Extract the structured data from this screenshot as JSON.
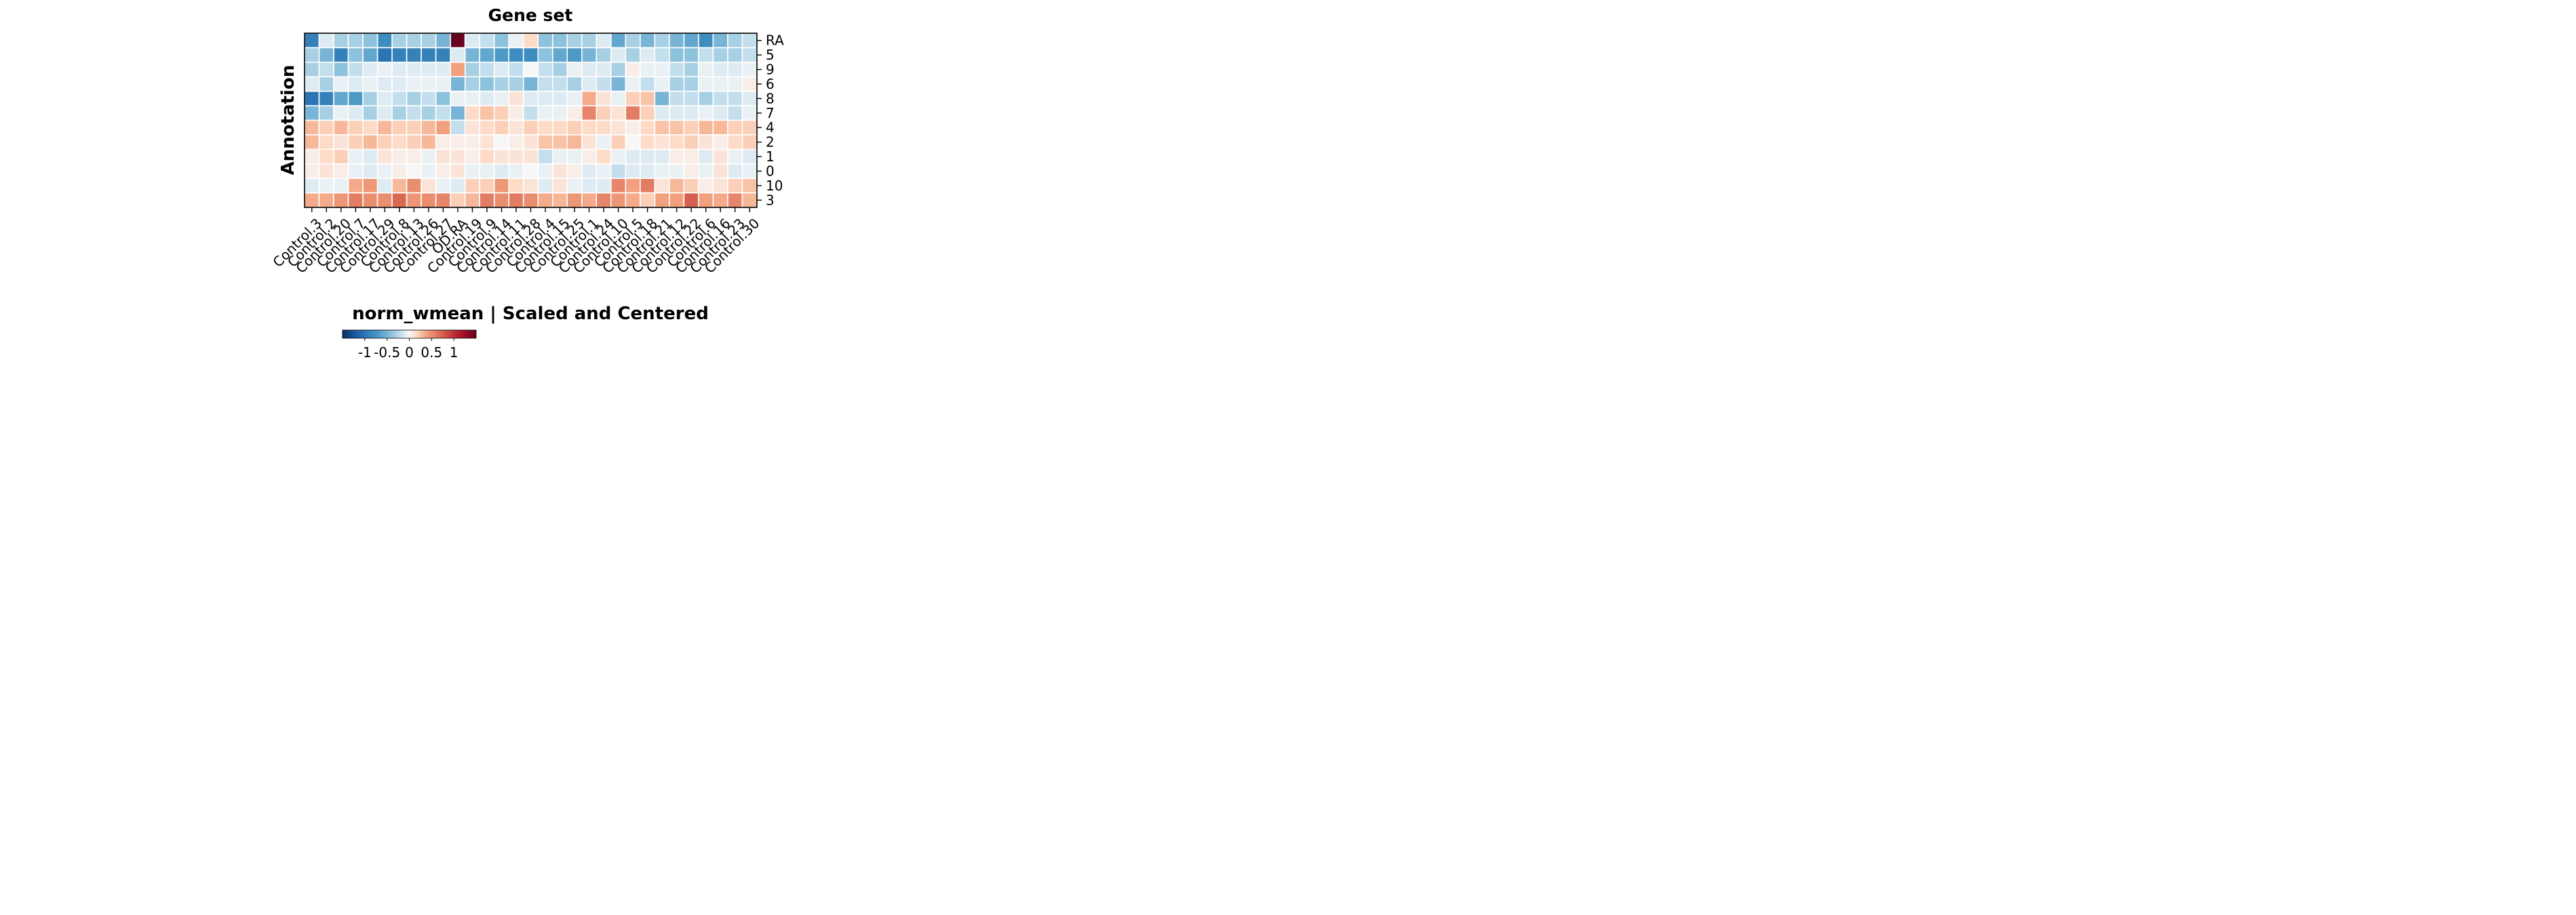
{
  "chart_data": {
    "type": "heatmap",
    "title": "Gene set",
    "xlabel": "",
    "ylabel": "Annotation",
    "colorbar": {
      "title": "norm_wmean | Scaled and Centered",
      "range": [
        -1.5,
        1.5
      ],
      "ticks": [
        -1,
        -0.5,
        0,
        0.5,
        1
      ],
      "tick_labels": [
        "-1",
        "-0.5",
        "0",
        "0.5",
        "1"
      ],
      "colormap": "RdBu_r"
    },
    "x_categories": [
      "Control.3",
      "Control.2",
      "Control.20",
      "Control.7",
      "Control.17",
      "Control.29",
      "Control.8",
      "Control.13",
      "Control.26",
      "Control.27",
      "OD.RA",
      "Control.19",
      "Control.9",
      "Control.14",
      "Control.11",
      "Control.28",
      "Control.4",
      "Control.15",
      "Control.25",
      "Control.1",
      "Control.24",
      "Control.10",
      "Control.5",
      "Control.18",
      "Control.21",
      "Control.12",
      "Control.22",
      "Control.6",
      "Control.16",
      "Control.23",
      "Control.30"
    ],
    "y_categories": [
      "RA",
      "5",
      "9",
      "6",
      "8",
      "7",
      "4",
      "2",
      "1",
      "0",
      "10",
      "3"
    ],
    "values": [
      [
        -0.9,
        -0.1,
        -0.3,
        -0.3,
        -0.4,
        -0.8,
        -0.3,
        -0.3,
        -0.3,
        -0.5,
        1.5,
        -0.1,
        -0.2,
        -0.4,
        -0.05,
        0.15,
        -0.4,
        -0.4,
        -0.3,
        -0.3,
        -0.1,
        -0.6,
        -0.3,
        -0.5,
        -0.3,
        -0.5,
        -0.6,
        -0.8,
        -0.5,
        -0.3,
        -0.2
      ],
      [
        -0.3,
        -0.5,
        -0.9,
        -0.4,
        -0.6,
        -1.0,
        -0.9,
        -0.9,
        -0.9,
        -0.9,
        -0.1,
        -0.5,
        -0.6,
        -0.7,
        -0.8,
        -0.8,
        -0.4,
        -0.6,
        -0.7,
        -0.5,
        -0.3,
        -0.1,
        -0.3,
        -0.1,
        -0.2,
        -0.4,
        -0.4,
        -0.2,
        -0.3,
        -0.3,
        -0.2
      ],
      [
        -0.3,
        -0.2,
        -0.4,
        -0.2,
        -0.1,
        -0.05,
        -0.1,
        -0.1,
        -0.1,
        -0.1,
        0.4,
        -0.3,
        -0.2,
        -0.1,
        -0.2,
        0.0,
        -0.2,
        -0.3,
        -0.05,
        -0.1,
        -0.1,
        -0.3,
        0.05,
        -0.05,
        -0.05,
        -0.2,
        -0.3,
        -0.05,
        -0.1,
        -0.1,
        -0.05
      ],
      [
        -0.1,
        -0.3,
        -0.05,
        -0.1,
        -0.05,
        -0.1,
        -0.1,
        -0.05,
        -0.05,
        -0.05,
        -0.5,
        -0.3,
        -0.4,
        -0.3,
        -0.3,
        -0.5,
        -0.2,
        -0.2,
        -0.3,
        -0.1,
        -0.2,
        -0.5,
        -0.05,
        -0.2,
        -0.05,
        -0.3,
        -0.3,
        -0.05,
        -0.05,
        -0.05,
        0.05
      ],
      [
        -1.0,
        -0.9,
        -0.6,
        -0.7,
        -0.3,
        -0.1,
        -0.2,
        -0.3,
        -0.2,
        -0.4,
        -0.05,
        -0.05,
        -0.1,
        -0.05,
        0.1,
        -0.1,
        -0.1,
        -0.1,
        -0.05,
        0.35,
        0.1,
        -0.05,
        0.2,
        0.25,
        -0.5,
        -0.2,
        -0.2,
        -0.3,
        -0.2,
        -0.2,
        -0.1
      ],
      [
        -0.5,
        -0.3,
        -0.05,
        -0.1,
        -0.3,
        -0.1,
        -0.3,
        -0.2,
        -0.3,
        -0.2,
        -0.5,
        0.15,
        0.25,
        0.2,
        0.05,
        -0.2,
        -0.05,
        -0.05,
        0.05,
        0.55,
        0.2,
        0.1,
        0.6,
        0.2,
        -0.1,
        -0.1,
        -0.1,
        -0.05,
        -0.1,
        -0.2,
        -0.05
      ],
      [
        0.3,
        0.2,
        0.3,
        0.2,
        0.15,
        0.3,
        0.2,
        0.2,
        0.3,
        0.4,
        -0.2,
        0.1,
        0.15,
        0.2,
        0.1,
        0.2,
        0.15,
        0.15,
        0.2,
        0.15,
        0.15,
        0.1,
        0.05,
        0.15,
        0.25,
        0.25,
        0.2,
        0.3,
        0.3,
        0.2,
        0.2
      ],
      [
        0.3,
        0.15,
        0.1,
        0.2,
        0.3,
        0.2,
        0.15,
        0.2,
        0.3,
        0.05,
        0.05,
        0.05,
        0.1,
        0.0,
        0.05,
        0.1,
        0.25,
        0.25,
        0.3,
        0.1,
        -0.05,
        0.2,
        0.0,
        0.15,
        0.1,
        0.15,
        0.2,
        0.1,
        0.05,
        0.15,
        0.2
      ],
      [
        0.05,
        0.15,
        0.2,
        -0.05,
        -0.1,
        0.1,
        0.05,
        0.05,
        -0.05,
        0.1,
        0.1,
        0.05,
        0.15,
        0.1,
        0.1,
        0.1,
        -0.2,
        -0.05,
        -0.05,
        0.05,
        0.15,
        -0.05,
        -0.1,
        -0.1,
        -0.1,
        0.05,
        0.05,
        -0.1,
        0.1,
        -0.05,
        -0.1
      ],
      [
        0.05,
        0.1,
        0.05,
        -0.05,
        -0.1,
        -0.05,
        0.05,
        0.0,
        -0.05,
        0.05,
        0.1,
        -0.05,
        -0.05,
        -0.1,
        -0.05,
        0.0,
        -0.05,
        0.1,
        0.05,
        -0.1,
        -0.05,
        -0.2,
        -0.1,
        -0.1,
        -0.05,
        -0.05,
        0.05,
        -0.05,
        0.1,
        -0.1,
        -0.05
      ],
      [
        -0.1,
        -0.05,
        -0.05,
        0.35,
        0.45,
        -0.1,
        0.3,
        0.5,
        0.1,
        -0.05,
        -0.1,
        0.2,
        0.2,
        0.45,
        0.15,
        0.1,
        -0.1,
        0.1,
        -0.05,
        -0.1,
        -0.1,
        0.55,
        0.4,
        0.6,
        0.1,
        0.3,
        0.2,
        0.05,
        0.1,
        0.2,
        0.25
      ],
      [
        0.35,
        0.35,
        0.45,
        0.6,
        0.5,
        0.5,
        0.7,
        0.45,
        0.5,
        0.55,
        0.2,
        0.3,
        0.6,
        0.5,
        0.6,
        0.5,
        0.35,
        0.3,
        0.45,
        0.35,
        0.55,
        0.45,
        0.35,
        0.2,
        0.4,
        0.4,
        0.75,
        0.4,
        0.35,
        0.55,
        0.3
      ]
    ]
  }
}
